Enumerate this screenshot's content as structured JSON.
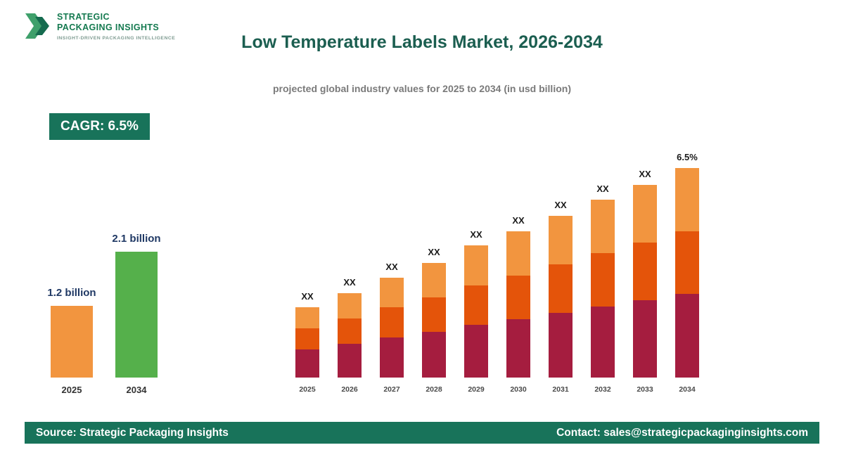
{
  "header": {
    "title": "Low Temperature Labels Market, 2026-2034",
    "subtitle": "projected global industry values for 2025 to 2034 (in usd billion)"
  },
  "logo": {
    "line1": "STRATEGIC",
    "line2": "PACKAGING INSIGHTS",
    "tagline": "INSIGHT-DRIVEN PACKAGING INTELLIGENCE"
  },
  "cagr": {
    "label": "CAGR: 6.5%"
  },
  "footer": {
    "source": "Source: Strategic Packaging Insights",
    "contact": "Contact: sales@strategicpackaginginsights.com"
  },
  "colors": {
    "accent_green": "#18735a",
    "title_teal": "#1b5e50",
    "label_navy": "#1f3864",
    "bar_orange_light": "#f2953f",
    "bar_orange_dark": "#e4540a",
    "bar_crimson": "#a51d3f",
    "bar_green": "#55b04b"
  },
  "chart_data": [
    {
      "type": "bar",
      "name": "market-size-summary",
      "categories": [
        "2025",
        "2034"
      ],
      "values": [
        1.2,
        2.1
      ],
      "value_labels": [
        "1.2 billion",
        "2.1 billion"
      ],
      "bar_colors": [
        "#f2953f",
        "#55b04b"
      ],
      "ylabel": "USD billion",
      "grid": false,
      "legend": false
    },
    {
      "type": "bar",
      "name": "stacked-projection",
      "stacked": true,
      "categories": [
        "2025",
        "2026",
        "2027",
        "2028",
        "2029",
        "2030",
        "2031",
        "2032",
        "2033",
        "2034"
      ],
      "value_labels": [
        "XX",
        "XX",
        "XX",
        "XX",
        "XX",
        "XX",
        "XX",
        "XX",
        "XX",
        "6.5%"
      ],
      "totals_relative": [
        100,
        120,
        142,
        163,
        188,
        208,
        230,
        253,
        274,
        298
      ],
      "segment_shares_bottom_to_top": [
        0.4,
        0.3,
        0.3
      ],
      "segment_colors_bottom_to_top": [
        "#a51d3f",
        "#e4540a",
        "#f2953f"
      ],
      "grid": false,
      "legend": false
    }
  ]
}
